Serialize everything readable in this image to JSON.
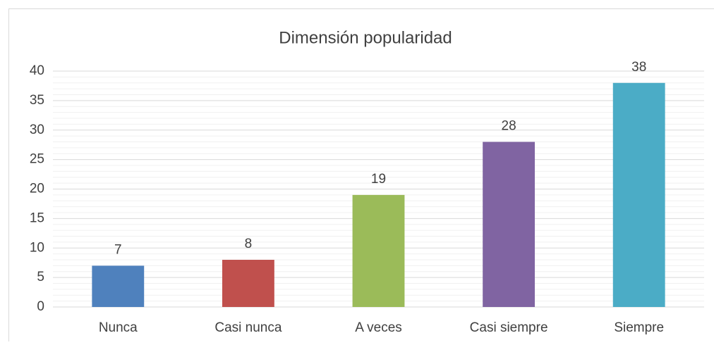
{
  "chart_data": {
    "type": "bar",
    "title": "Dimensión popularidad",
    "categories": [
      "Nunca",
      "Casi nunca",
      "A veces",
      "Casi siempre",
      "Siempre"
    ],
    "values": [
      7,
      8,
      19,
      28,
      38
    ],
    "colors": [
      "#4f81bd",
      "#c0504d",
      "#9bbb59",
      "#8064a2",
      "#4bacc6"
    ],
    "ylim": [
      0,
      40
    ],
    "yticks": [
      0,
      5,
      10,
      15,
      20,
      25,
      30,
      35,
      40
    ],
    "yminor_ticks": [
      1,
      2,
      3,
      4,
      6,
      7,
      8,
      9,
      11,
      12,
      13,
      14,
      16,
      17,
      18,
      19,
      21,
      22,
      23,
      24,
      26,
      27,
      28,
      29,
      31,
      32,
      33,
      34,
      36,
      37,
      38,
      39
    ],
    "grid": true,
    "minor_grid": true,
    "data_labels": true
  }
}
